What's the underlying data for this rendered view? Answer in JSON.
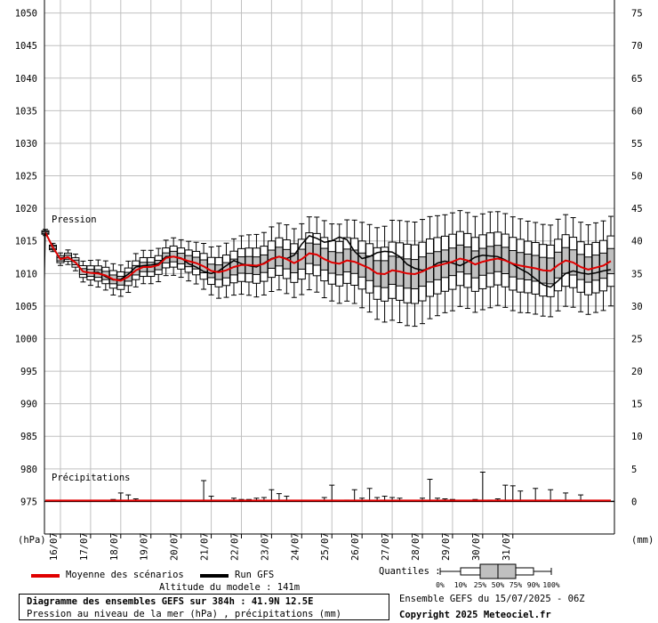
{
  "header": {
    "title": "Diagramme des ensembles GEFS sur 384h : 41.9N 12.5E",
    "subtitle": "Pression au niveau de la mer (hPa) , précipitations (mm)",
    "model_altitude": "Altitude du modele : 141m",
    "run_info": "Ensemble GEFS du 15/07/2025 - 06Z",
    "copyright": "Copyright 2025 Meteociel.fr"
  },
  "legend": {
    "mean_label": "Moyenne des scénarios",
    "gfs_label": "Run GFS",
    "quantiles_label": "Quantiles :",
    "quantile_ticks": [
      "0%",
      "10%",
      "25%",
      "50%",
      "75%",
      "90%",
      "100%"
    ],
    "colors": {
      "mean": "#e00000",
      "gfs": "#000000",
      "box": "#c0c0c0"
    }
  },
  "chart_data": {
    "type": "box",
    "panel_labels": {
      "pressure": "Pression",
      "precip": "Précipitations"
    },
    "left_axis_unit": "(hPa)",
    "right_axis_unit": "(mm)",
    "left_axis": {
      "range": [
        970,
        1052
      ],
      "ticks": [
        975,
        980,
        985,
        990,
        995,
        1000,
        1005,
        1010,
        1015,
        1020,
        1025,
        1030,
        1035,
        1040,
        1045,
        1050
      ]
    },
    "right_axis": {
      "range": [
        -5,
        77
      ],
      "ticks": [
        0,
        5,
        10,
        15,
        20,
        25,
        30,
        35,
        40,
        45,
        50,
        55,
        60,
        65,
        70,
        75
      ]
    },
    "x_labels": [
      "16/07",
      "17/07",
      "18/07",
      "19/07",
      "20/07",
      "21/07",
      "22/07",
      "23/07",
      "24/07",
      "25/07",
      "26/07",
      "27/07",
      "28/07",
      "29/07",
      "30/07",
      "31/07"
    ],
    "time_step_hours": 6,
    "pressure_mean": [
      1016.3,
      1014.0,
      1012.2,
      1012.5,
      1011.7,
      1010.3,
      1010.1,
      1010.0,
      1009.7,
      1009.1,
      1008.9,
      1009.5,
      1010.5,
      1011.0,
      1011.0,
      1011.3,
      1012.4,
      1012.6,
      1012.3,
      1011.9,
      1011.6,
      1011.1,
      1010.4,
      1010.2,
      1010.5,
      1011.0,
      1011.3,
      1011.3,
      1011.2,
      1011.5,
      1012.2,
      1012.6,
      1012.2,
      1011.6,
      1012.2,
      1013.1,
      1012.9,
      1012.2,
      1011.7,
      1011.5,
      1012.0,
      1011.8,
      1011.3,
      1010.8,
      1010.0,
      1009.9,
      1010.5,
      1010.3,
      1010.0,
      1009.9,
      1010.3,
      1010.9,
      1011.2,
      1011.5,
      1011.8,
      1012.3,
      1012.0,
      1011.4,
      1011.8,
      1012.1,
      1012.3,
      1012.0,
      1011.5,
      1011.2,
      1011.0,
      1010.8,
      1010.5,
      1010.4,
      1011.3,
      1012.0,
      1011.7,
      1011.0,
      1010.6,
      1010.9,
      1011.2,
      1011.9
    ],
    "pressure_gfs": [
      1016.3,
      1014.0,
      1012.2,
      1012.5,
      1011.7,
      1010.3,
      1010.1,
      1010.2,
      1009.5,
      1009.0,
      1009.1,
      1009.9,
      1011.0,
      1011.2,
      1011.3,
      1011.5,
      1012.6,
      1012.6,
      1012.4,
      1011.5,
      1011.0,
      1010.3,
      1010.0,
      1010.4,
      1011.2,
      1012.0,
      1011.5,
      1011.2,
      1011.0,
      1011.6,
      1012.3,
      1012.6,
      1012.3,
      1012.8,
      1014.5,
      1015.8,
      1015.4,
      1014.8,
      1015.0,
      1015.6,
      1015.2,
      1013.4,
      1012.3,
      1012.6,
      1013.2,
      1013.4,
      1013.3,
      1012.6,
      1011.4,
      1010.8,
      1010.5,
      1010.8,
      1011.6,
      1011.9,
      1011.6,
      1011.2,
      1011.8,
      1012.5,
      1012.8,
      1012.7,
      1012.6,
      1012.1,
      1011.4,
      1010.7,
      1010.1,
      1009.2,
      1008.3,
      1007.9,
      1008.9,
      1010.0,
      1010.4,
      1010.1,
      1009.9,
      1010.1,
      1010.4,
      1010.6
    ],
    "pressure_spread": [
      0.3,
      0.4,
      0.6,
      0.7,
      0.8,
      1.0,
      1.2,
      1.3,
      1.4,
      1.5,
      1.5,
      1.5,
      1.6,
      1.6,
      1.6,
      1.6,
      1.7,
      1.8,
      1.8,
      1.9,
      2.0,
      2.2,
      2.3,
      2.5,
      2.6,
      2.7,
      2.8,
      2.9,
      3.0,
      3.0,
      3.1,
      3.2,
      3.3,
      3.3,
      3.4,
      3.5,
      3.6,
      3.7,
      3.7,
      3.8,
      3.9,
      4.0,
      4.1,
      4.2,
      4.4,
      4.6,
      4.8,
      4.9,
      5.0,
      5.0,
      5.0,
      4.9,
      4.8,
      4.7,
      4.7,
      4.6,
      4.6,
      4.6,
      4.6,
      4.6,
      4.5,
      4.5,
      4.5,
      4.5,
      4.4,
      4.4,
      4.4,
      4.4,
      4.4,
      4.4,
      4.3,
      4.3,
      4.3,
      4.3,
      4.3,
      4.3
    ],
    "precip_max": [
      0,
      0,
      0,
      0,
      0,
      0,
      0,
      0,
      0,
      0.3,
      1.3,
      1.0,
      0.4,
      0,
      0,
      0,
      0,
      0,
      0,
      0,
      0,
      3.2,
      0.8,
      0,
      0,
      0.5,
      0.3,
      0.3,
      0.5,
      0.6,
      1.8,
      1.2,
      0.8,
      0,
      0,
      0,
      0,
      0.6,
      2.5,
      0,
      0.2,
      1.8,
      0.5,
      2.0,
      0.6,
      0.8,
      0.6,
      0.5,
      0,
      0,
      0.5,
      3.4,
      0.5,
      0.4,
      0.3,
      0,
      0,
      0.3,
      4.5,
      0.2,
      0.4,
      2.5,
      2.4,
      1.6,
      0,
      2.0,
      0.2,
      1.8,
      0.2,
      1.3,
      0,
      1.0,
      0,
      0,
      0,
      0
    ]
  }
}
